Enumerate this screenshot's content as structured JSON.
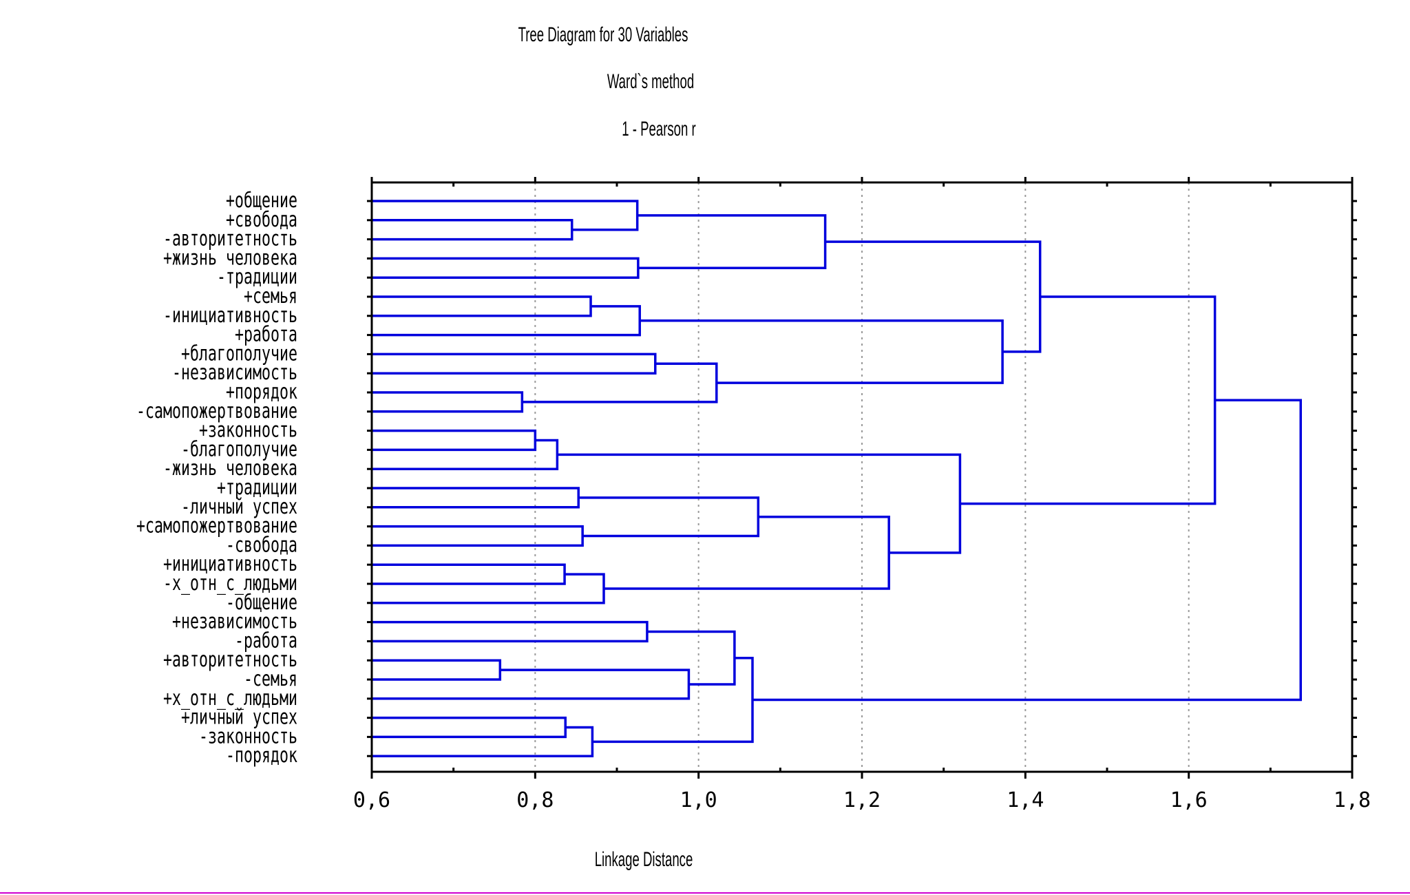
{
  "chart_data": {
    "type": "dendrogram",
    "title": "Tree Diagram for 30 Variables",
    "subtitle_1": "Ward`s method",
    "subtitle_2": "1 - Pearson r",
    "xlabel": "Linkage Distance",
    "xlim": [
      0.6,
      1.8
    ],
    "x_ticks": [
      "0,6",
      "0,8",
      "1,0",
      "1,2",
      "1,4",
      "1,6",
      "1,8"
    ],
    "grid": true,
    "leaves": [
      "+общение",
      "+свобода",
      "-авторитетность",
      "+жизнь человека",
      "-традиции",
      "+семья",
      "-инициативность",
      "+работа",
      "+благополучие",
      "-независимость",
      "+порядок",
      "-самопожертвование",
      "+законность",
      "-благополучие",
      "-жизнь человека",
      "+традиции",
      "-личный успех",
      "+самопожертвование",
      "-свобода",
      "+инициативность",
      "-х_отн_с_людьми",
      "-общение",
      "+независимость",
      "-работа",
      "+авторитетность",
      "-семья",
      "+х_отн_с_людьми",
      "+личный успех",
      "-законность",
      "-порядок"
    ],
    "merges": [
      {
        "a": "L1",
        "b": "L2",
        "height": 0.845
      },
      {
        "a": "L0",
        "b": "N0",
        "height": 0.925
      },
      {
        "a": "L3",
        "b": "L4",
        "height": 0.926
      },
      {
        "a": "N1",
        "b": "N2",
        "height": 1.155
      },
      {
        "a": "L5",
        "b": "L6",
        "height": 0.868
      },
      {
        "a": "N4",
        "b": "L7",
        "height": 0.928
      },
      {
        "a": "L8",
        "b": "L9",
        "height": 0.947
      },
      {
        "a": "L10",
        "b": "L11",
        "height": 0.784
      },
      {
        "a": "N6",
        "b": "N7",
        "height": 1.022
      },
      {
        "a": "N5",
        "b": "N8",
        "height": 1.372
      },
      {
        "a": "N3",
        "b": "N9",
        "height": 1.418
      },
      {
        "a": "L12",
        "b": "L13",
        "height": 0.8
      },
      {
        "a": "N11",
        "b": "L14",
        "height": 0.827
      },
      {
        "a": "L15",
        "b": "L16",
        "height": 0.853
      },
      {
        "a": "L17",
        "b": "L18",
        "height": 0.858
      },
      {
        "a": "N13",
        "b": "N14",
        "height": 1.073
      },
      {
        "a": "L19",
        "b": "L20",
        "height": 0.836
      },
      {
        "a": "N16",
        "b": "L21",
        "height": 0.884
      },
      {
        "a": "N15",
        "b": "N17",
        "height": 1.233
      },
      {
        "a": "N12",
        "b": "N18",
        "height": 1.32
      },
      {
        "a": "N10",
        "b": "N19",
        "height": 1.632
      },
      {
        "a": "L22",
        "b": "L23",
        "height": 0.937
      },
      {
        "a": "L24",
        "b": "L25",
        "height": 0.757
      },
      {
        "a": "N22",
        "b": "L26",
        "height": 0.988
      },
      {
        "a": "N21",
        "b": "N23",
        "height": 1.044
      },
      {
        "a": "L27",
        "b": "L28",
        "height": 0.837
      },
      {
        "a": "N25",
        "b": "L29",
        "height": 0.87
      },
      {
        "a": "N24",
        "b": "N26",
        "height": 1.066
      },
      {
        "a": "N20",
        "b": "N27",
        "height": 1.737
      }
    ]
  }
}
